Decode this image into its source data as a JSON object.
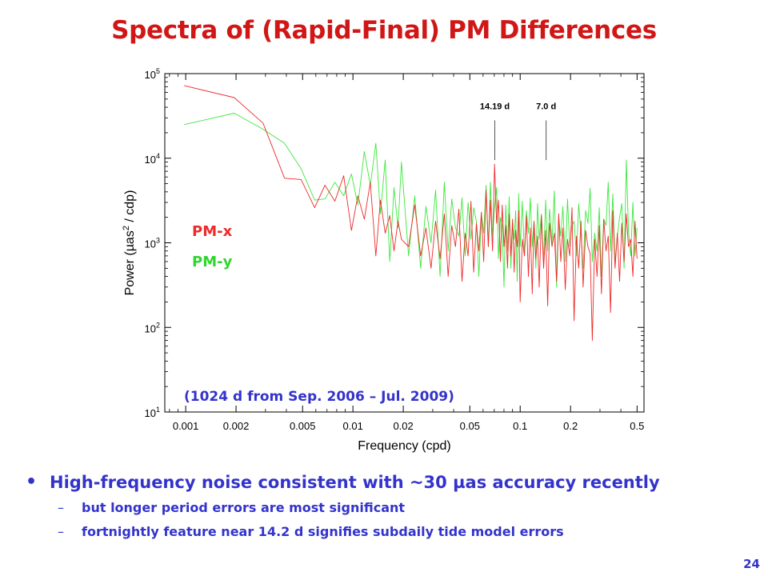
{
  "title": "Spectra of (Rapid-Final) PM Differences",
  "chart_data": {
    "type": "line",
    "xlabel": "Frequency (cpd)",
    "ylabel_prefix": "Power (µas",
    "ylabel_sup": "2",
    "ylabel_suffix": " / cdp)",
    "x_scale": "log",
    "y_scale": "log",
    "xlim": [
      0.00075,
      0.55
    ],
    "ylim": [
      10,
      100000
    ],
    "x_ticks": [
      0.001,
      0.002,
      0.005,
      0.01,
      0.02,
      0.05,
      0.1,
      0.2,
      0.5
    ],
    "x_tick_labels": [
      "0.001",
      "0.002",
      "0.005",
      "0.01",
      "0.02",
      "0.05",
      "0.1",
      "0.2",
      "0.5"
    ],
    "y_ticks": [
      10,
      100,
      1000,
      10000,
      100000
    ],
    "y_tick_base": "10",
    "y_tick_exps": [
      "1",
      "2",
      "3",
      "4",
      "5"
    ],
    "annotations": [
      {
        "label": "14.19 d",
        "x": 0.0705,
        "y_from": 9500,
        "y_to": 28000
      },
      {
        "label": "7.0 d",
        "x": 0.1429,
        "y_from": 9500,
        "y_to": 28000
      }
    ],
    "note": "(1024 d from Sep. 2006 – Jul. 2009)",
    "legend": [
      "PM-x",
      "PM-y"
    ],
    "legend_placement": "left-middle",
    "series": [
      {
        "name": "PM-x",
        "color": "#ee2a2a",
        "x": [
          0.00098,
          0.00195,
          0.0029,
          0.0039,
          0.0049,
          0.0059,
          0.0068,
          0.0078,
          0.0088,
          0.0098,
          0.0107,
          0.0117,
          0.0127,
          0.0137,
          0.0146,
          0.0156,
          0.0166,
          0.0176,
          0.0186,
          0.0195,
          0.0215,
          0.0234,
          0.0254,
          0.0273,
          0.0293,
          0.0312,
          0.0332,
          0.0352,
          0.0371,
          0.039,
          0.041,
          0.043,
          0.0449,
          0.0469,
          0.0488,
          0.0508,
          0.0527,
          0.0547,
          0.0566,
          0.0586,
          0.0605,
          0.0625,
          0.0645,
          0.0664,
          0.0684,
          0.0703,
          0.0723,
          0.0742,
          0.0762,
          0.0781,
          0.08,
          0.082,
          0.084,
          0.086,
          0.088,
          0.09,
          0.092,
          0.094,
          0.096,
          0.098,
          0.1,
          0.103,
          0.106,
          0.109,
          0.112,
          0.115,
          0.118,
          0.121,
          0.124,
          0.127,
          0.13,
          0.134,
          0.138,
          0.142,
          0.146,
          0.15,
          0.155,
          0.16,
          0.165,
          0.17,
          0.175,
          0.18,
          0.186,
          0.192,
          0.198,
          0.204,
          0.21,
          0.217,
          0.224,
          0.231,
          0.238,
          0.246,
          0.254,
          0.262,
          0.27,
          0.279,
          0.288,
          0.297,
          0.306,
          0.316,
          0.326,
          0.336,
          0.347,
          0.358,
          0.369,
          0.381,
          0.393,
          0.405,
          0.418,
          0.431,
          0.444,
          0.458,
          0.472,
          0.486,
          0.5
        ],
        "y": [
          72000,
          52000,
          26000,
          5800,
          5600,
          2600,
          4800,
          3100,
          6200,
          1400,
          3600,
          1900,
          5200,
          700,
          3200,
          1300,
          2100,
          800,
          1800,
          1100,
          900,
          2800,
          700,
          1500,
          500,
          1800,
          650,
          2200,
          400,
          1600,
          900,
          2500,
          350,
          1300,
          700,
          3100,
          450,
          1700,
          800,
          2300,
          600,
          4200,
          900,
          3200,
          800,
          8500,
          1700,
          3200,
          600,
          2800,
          900,
          1600,
          500,
          2200,
          700,
          1900,
          450,
          1400,
          900,
          2400,
          200,
          1100,
          700,
          2100,
          400,
          1500,
          250,
          1800,
          650,
          1200,
          300,
          2100,
          500,
          1400,
          180,
          1700,
          900,
          1300,
          350,
          2200,
          600,
          1500,
          280,
          1100,
          700,
          2600,
          120,
          1200,
          500,
          1800,
          300,
          1400,
          900,
          750,
          70,
          1100,
          400,
          1600,
          250,
          1900,
          800,
          1200,
          150,
          2400,
          500,
          1300,
          350,
          1700,
          600,
          2200,
          900,
          1100,
          400,
          1800,
          650
        ]
      },
      {
        "name": "PM-y",
        "color": "#3ce83c",
        "x": [
          0.00098,
          0.00195,
          0.0029,
          0.0039,
          0.0049,
          0.0059,
          0.0068,
          0.0078,
          0.0088,
          0.0098,
          0.0107,
          0.0117,
          0.0127,
          0.0137,
          0.0146,
          0.0156,
          0.0166,
          0.0176,
          0.0186,
          0.0195,
          0.0215,
          0.0234,
          0.0254,
          0.0273,
          0.0293,
          0.0312,
          0.0332,
          0.0352,
          0.0371,
          0.039,
          0.041,
          0.043,
          0.0449,
          0.0469,
          0.0488,
          0.0508,
          0.0527,
          0.0547,
          0.0566,
          0.0586,
          0.0605,
          0.0625,
          0.0645,
          0.0664,
          0.0684,
          0.0703,
          0.0723,
          0.0742,
          0.0762,
          0.0781,
          0.08,
          0.082,
          0.084,
          0.086,
          0.088,
          0.09,
          0.092,
          0.094,
          0.096,
          0.098,
          0.1,
          0.103,
          0.106,
          0.109,
          0.112,
          0.115,
          0.118,
          0.121,
          0.124,
          0.127,
          0.13,
          0.134,
          0.138,
          0.142,
          0.146,
          0.15,
          0.155,
          0.16,
          0.165,
          0.17,
          0.175,
          0.18,
          0.186,
          0.192,
          0.198,
          0.204,
          0.21,
          0.217,
          0.224,
          0.231,
          0.238,
          0.246,
          0.254,
          0.262,
          0.27,
          0.279,
          0.288,
          0.297,
          0.306,
          0.316,
          0.326,
          0.336,
          0.347,
          0.358,
          0.369,
          0.381,
          0.393,
          0.405,
          0.418,
          0.431,
          0.444,
          0.458,
          0.472,
          0.486,
          0.5
        ],
        "y": [
          25000,
          34000,
          22000,
          15000,
          7500,
          3200,
          3300,
          5200,
          3600,
          6500,
          2800,
          12000,
          4800,
          15000,
          2200,
          9500,
          600,
          4500,
          1500,
          9000,
          700,
          3600,
          500,
          2700,
          1000,
          4200,
          400,
          5200,
          800,
          3300,
          1500,
          1200,
          3400,
          700,
          3000,
          1100,
          2600,
          1800,
          400,
          2200,
          1300,
          4800,
          900,
          5200,
          1200,
          2600,
          4500,
          650,
          2000,
          1600,
          300,
          2800,
          800,
          3500,
          500,
          1700,
          1100,
          2400,
          350,
          3800,
          900,
          3100,
          700,
          2400,
          1300,
          3400,
          900,
          1800,
          500,
          2900,
          1100,
          2200,
          600,
          3200,
          800,
          2500,
          1000,
          4100,
          300,
          1900,
          1200,
          2700,
          600,
          3300,
          900,
          1600,
          1800,
          700,
          2900,
          1300,
          500,
          2400,
          1700,
          4400,
          600,
          1300,
          800,
          2600,
          400,
          1900,
          1600,
          5200,
          800,
          3800,
          600,
          1200,
          2000,
          2900,
          500,
          9500,
          1400,
          700,
          3000,
          700,
          1500
        ]
      }
    ]
  },
  "bullets": {
    "main": "High-frequency noise consistent with ~30 µas accuracy recently",
    "subs": [
      "but longer period errors are most significant",
      "fortnightly feature near 14.2 d signifies subdaily tide model errors"
    ],
    "dash": "–",
    "dot": "•"
  },
  "page_number": "24"
}
